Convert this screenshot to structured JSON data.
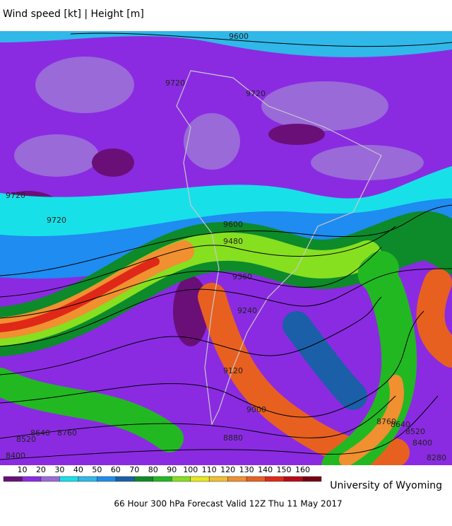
{
  "header": {
    "title": "Wind speed [kt] | Height [m]"
  },
  "map": {
    "contour_labels": [
      "9600",
      "9720",
      "9720",
      "9720",
      "9720",
      "9600",
      "9480",
      "9360",
      "9240",
      "9120",
      "9000",
      "8880",
      "8760",
      "8640",
      "8520",
      "8400",
      "8280",
      "8640",
      "8760",
      "8520",
      "8400"
    ]
  },
  "legend": {
    "levels": [
      "10",
      "20",
      "30",
      "40",
      "50",
      "60",
      "70",
      "80",
      "90",
      "100",
      "110",
      "120",
      "130",
      "140",
      "150",
      "160"
    ],
    "colors": [
      "#6a0f78",
      "#8a2be2",
      "#9a6ad8",
      "#18e0e8",
      "#30b8e8",
      "#1e8cf0",
      "#1a5fa8",
      "#0d8a2a",
      "#22b822",
      "#86e020",
      "#e8e820",
      "#f0c030",
      "#f09030",
      "#e86020",
      "#e02818",
      "#b80818",
      "#780010"
    ]
  },
  "footer": {
    "credit": "University of Wyoming",
    "caption": "66 Hour 300 hPa Forecast Valid 12Z Thu 11 May 2017"
  }
}
